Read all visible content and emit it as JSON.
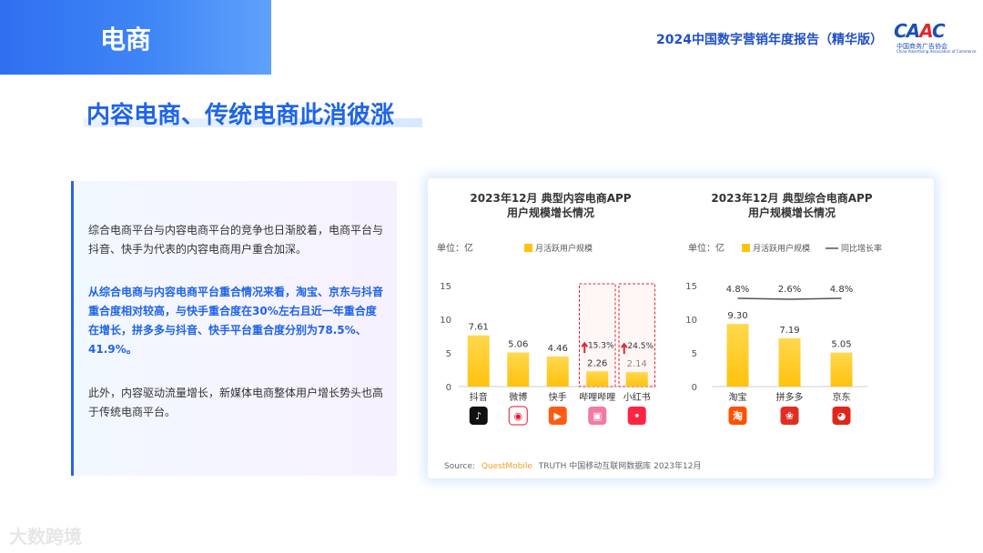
{
  "header": {
    "section": "电商",
    "report_title": "2024中国数字营销年度报告（精华版）",
    "logo_text": "CAAC",
    "logo_sub": "中国商务广告协会",
    "logo_sub_en": "China Advertising Association of Commerce"
  },
  "headline": "内容电商、传统电商此消彼涨",
  "text_panel": {
    "p1": "综合电商平台与内容电商平台的竞争也日渐胶着，电商平台与抖音、快手为代表的内容电商用户重合加深。",
    "p2": "从综合电商与内容电商平台重合情况来看，淘宝、京东与抖音重合度相对较高，与快手重合度在30%左右且近一年重合度在增长，拼多多与抖音、快手平台重合度分别为78.5%、41.9%。",
    "p3": "此外，内容驱动流量增长，新媒体电商整体用户增长势头也高于传统电商平台。"
  },
  "source": {
    "label": "Source:",
    "brand": "QuestMobile",
    "text": "TRUTH 中国移动互联网数据库 2023年12月"
  },
  "watermark": "大数跨境",
  "colors": {
    "bar": "#ffc20e",
    "bar_top": "#ffd84d",
    "line": "#555555",
    "arrow": "#e3262f",
    "accent": "#1f64e8"
  },
  "chart_data": [
    {
      "type": "bar",
      "title": "2023年12月 典型内容电商APP",
      "subtitle": "用户规模增长情况",
      "unit_label": "单位：亿",
      "ylim": [
        0,
        15
      ],
      "yticks": [
        "0",
        "5",
        "10",
        "15"
      ],
      "categories": [
        "抖音",
        "微博",
        "快手",
        "哔哩哔哩",
        "小红书"
      ],
      "icons": [
        "douyin-icon",
        "weibo-icon",
        "kuaishou-icon",
        "bilibili-icon",
        "xiaohongshu-icon"
      ],
      "series": [
        {
          "name": "月活跃用户规模",
          "values": [
            7.61,
            5.06,
            4.46,
            2.26,
            2.14
          ]
        }
      ],
      "labels": [
        "7.61",
        "5.06",
        "4.46",
        "2.26",
        "2.14"
      ],
      "growth_annotations": [
        {
          "category": "哔哩哔哩",
          "text": "15.3%"
        },
        {
          "category": "小红书",
          "text": "24.5%"
        }
      ]
    },
    {
      "type": "bar",
      "title": "2023年12月 典型综合电商APP",
      "subtitle": "用户规模增长情况",
      "unit_label": "单位：亿",
      "ylim": [
        0,
        15
      ],
      "yticks": [
        "0",
        "5",
        "10",
        "15"
      ],
      "categories": [
        "淘宝",
        "拼多多",
        "京东"
      ],
      "icons": [
        "taobao-icon",
        "pinduoduo-icon",
        "jd-icon"
      ],
      "series": [
        {
          "name": "月活跃用户规模",
          "values": [
            9.3,
            7.19,
            5.05
          ]
        },
        {
          "name": "同比增长率",
          "values": [
            4.8,
            2.6,
            4.8
          ]
        }
      ],
      "labels": [
        "9.30",
        "7.19",
        "5.05"
      ],
      "line_labels": [
        "4.8%",
        "2.6%",
        "4.8%"
      ]
    }
  ]
}
